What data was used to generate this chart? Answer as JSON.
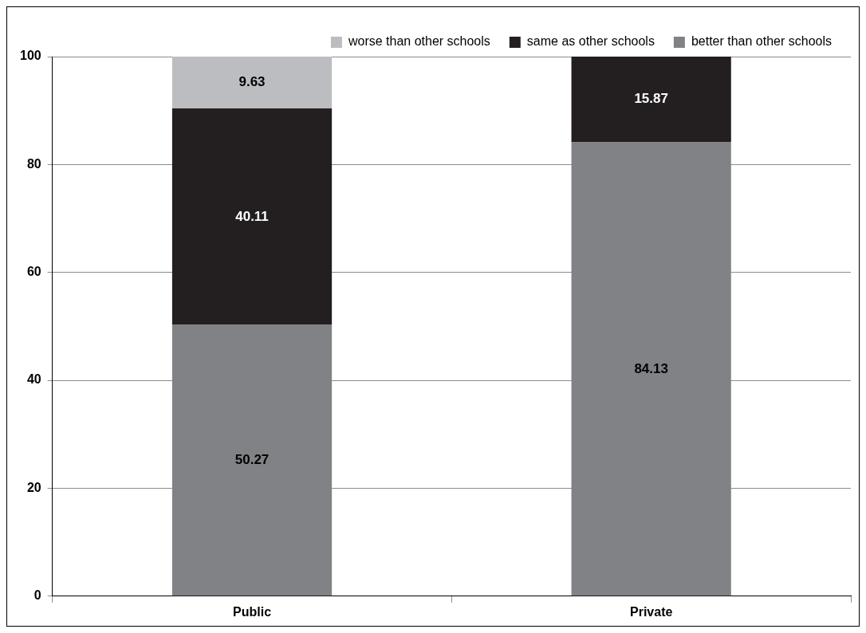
{
  "chart_data": {
    "type": "bar",
    "stacked": true,
    "categories": [
      "Public",
      "Private"
    ],
    "series": [
      {
        "name": "better than other schools",
        "color": "#808285",
        "values": [
          50.27,
          84.13
        ],
        "value_labels": [
          "50.27",
          "84.13"
        ]
      },
      {
        "name": "same as other schools",
        "color": "#231f20",
        "values": [
          40.11,
          15.87
        ],
        "value_labels": [
          "40.11",
          "15.87"
        ]
      },
      {
        "name": "worse than other schools",
        "color": "#bcbdc0",
        "values": [
          9.63,
          null
        ],
        "value_labels": [
          "9.63",
          null
        ]
      }
    ],
    "ylim": [
      0,
      100
    ],
    "yticks": [
      0,
      20,
      40,
      60,
      80,
      100
    ],
    "grid": "y",
    "legend": "top right"
  }
}
